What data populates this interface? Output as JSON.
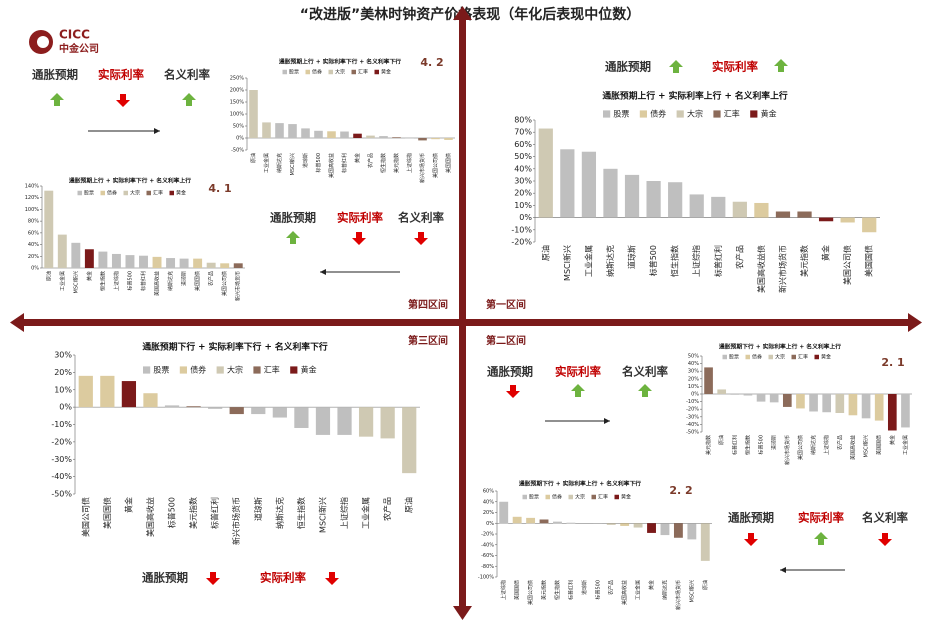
{
  "title": "“改进版”美林时钟资产价格表现（年化后表现中位数）",
  "logo": {
    "name": "CICC",
    "sub": "中金公司"
  },
  "quadrant_labels": [
    "第四区间",
    "第一区间",
    "第三区间",
    "第二区间"
  ],
  "indicators": [
    {
      "items": [
        {
          "text": "通胀预期",
          "dir": "up",
          "color": "#333333"
        },
        {
          "text": "实际利率",
          "dir": "down",
          "color": "#c00000"
        },
        {
          "text": "名义利率",
          "dir": "up",
          "color": "#333333"
        }
      ],
      "flow": "right"
    },
    {
      "items": [
        {
          "text": "通胀预期",
          "dir": "up",
          "color": "#333333"
        },
        {
          "text": "实际利率",
          "dir": "down",
          "color": "#c00000"
        },
        {
          "text": "名义利率",
          "dir": "down",
          "color": "#333333"
        }
      ],
      "flow": "left"
    },
    {
      "items": [
        {
          "text": "通胀预期",
          "dir": "up",
          "color": "#333333"
        },
        {
          "text": "实际利率",
          "dir": "up",
          "color": "#c00000"
        }
      ]
    },
    {
      "items": [
        {
          "text": "通胀预期",
          "dir": "down",
          "color": "#333333"
        },
        {
          "text": "实际利率",
          "dir": "up",
          "color": "#c00000"
        },
        {
          "text": "名义利率",
          "dir": "up",
          "color": "#333333"
        }
      ],
      "flow": "right"
    },
    {
      "items": [
        {
          "text": "通胀预期",
          "dir": "down",
          "color": "#333333"
        },
        {
          "text": "实际利率",
          "dir": "up",
          "color": "#c00000"
        },
        {
          "text": "名义利率",
          "dir": "down",
          "color": "#333333"
        }
      ],
      "flow": "left"
    },
    {
      "items": [
        {
          "text": "通胀预期",
          "dir": "down",
          "color": "#333333"
        },
        {
          "text": "实际利率",
          "dir": "down",
          "color": "#c00000"
        }
      ]
    }
  ],
  "chart_data": [
    {
      "type": "bar",
      "label": "4. 2",
      "title": "通胀预期上行 + 实际利率下行 + 名义利率下行",
      "legend": [
        {
          "name": "股票",
          "color": "#bfbfbf"
        },
        {
          "name": "债券",
          "color": "#dccb9f"
        },
        {
          "name": "大宗",
          "color": "#cfc9b3"
        },
        {
          "name": "汇率",
          "color": "#8c6b5a"
        },
        {
          "name": "黄金",
          "color": "#7b1a1a"
        }
      ],
      "categories": [
        "原油",
        "工业金属",
        "纳斯达克",
        "MSCI新兴",
        "道琼斯",
        "标普500",
        "美国高收益",
        "标普红利",
        "黄金",
        "农产品",
        "恒生指数",
        "美元指数",
        "上证综指",
        "新兴市场货币",
        "美国公司债",
        "美国国债"
      ],
      "values": [
        200,
        65,
        62,
        58,
        40,
        30,
        28,
        27,
        18,
        10,
        8,
        3,
        -2,
        -10,
        -5,
        -8
      ],
      "colors": [
        "#cfc9b3",
        "#cfc9b3",
        "#bfbfbf",
        "#bfbfbf",
        "#bfbfbf",
        "#bfbfbf",
        "#dccb9f",
        "#bfbfbf",
        "#7b1a1a",
        "#cfc9b3",
        "#bfbfbf",
        "#8c6b5a",
        "#bfbfbf",
        "#8c6b5a",
        "#dccb9f",
        "#dccb9f"
      ],
      "ylim": [
        -50,
        250
      ],
      "yticks": [
        {
          "value": 250,
          "label": "250%"
        },
        {
          "value": 200,
          "label": "200%"
        },
        {
          "value": 150,
          "label": "150%"
        },
        {
          "value": 100,
          "label": "100%"
        },
        {
          "value": 50,
          "label": "50%"
        },
        {
          "value": 0,
          "label": "0%"
        },
        {
          "value": -50,
          "label": "-50%"
        }
      ]
    },
    {
      "type": "bar",
      "label": "4. 1",
      "title": "通胀预期上行 + 实际利率下行 + 名义利率上行",
      "legend": [
        {
          "name": "股票",
          "color": "#bfbfbf"
        },
        {
          "name": "债券",
          "color": "#dccb9f"
        },
        {
          "name": "大宗",
          "color": "#cfc9b3"
        },
        {
          "name": "汇率",
          "color": "#8c6b5a"
        },
        {
          "name": "黄金",
          "color": "#7b1a1a"
        }
      ],
      "categories": [
        "原油",
        "工业金属",
        "MSCI新兴",
        "黄金",
        "恒生指数",
        "上证综指",
        "标普500",
        "标普红利",
        "美国高收益",
        "纳斯达克",
        "道琼斯",
        "美国国债",
        "农产品",
        "美国公司债",
        "新兴市场货币"
      ],
      "values": [
        132,
        57,
        43,
        32,
        28,
        24,
        22,
        21,
        19,
        17,
        16,
        16,
        9,
        8,
        8
      ],
      "colors": [
        "#cfc9b3",
        "#cfc9b3",
        "#bfbfbf",
        "#7b1a1a",
        "#bfbfbf",
        "#bfbfbf",
        "#bfbfbf",
        "#bfbfbf",
        "#dccb9f",
        "#bfbfbf",
        "#bfbfbf",
        "#dccb9f",
        "#cfc9b3",
        "#dccb9f",
        "#8c6b5a"
      ],
      "ylim": [
        0,
        140
      ],
      "yticks": [
        {
          "value": 140,
          "label": "140%"
        },
        {
          "value": 120,
          "label": "120%"
        },
        {
          "value": 100,
          "label": "100%"
        },
        {
          "value": 80,
          "label": "80%"
        },
        {
          "value": 60,
          "label": "60%"
        },
        {
          "value": 40,
          "label": "40%"
        },
        {
          "value": 20,
          "label": "20%"
        },
        {
          "value": 0,
          "label": "0%"
        }
      ]
    },
    {
      "type": "bar",
      "title": "通胀预期上行 + 实际利率上行 + 名义利率上行",
      "legend": [
        {
          "name": "股票",
          "color": "#bfbfbf"
        },
        {
          "name": "债券",
          "color": "#dccb9f"
        },
        {
          "name": "大宗",
          "color": "#cfc9b3"
        },
        {
          "name": "汇率",
          "color": "#8c6b5a"
        },
        {
          "name": "黄金",
          "color": "#7b1a1a"
        }
      ],
      "categories": [
        "原油",
        "MSCI新兴",
        "工业金属",
        "纳斯达克",
        "道琼斯",
        "标普500",
        "恒生指数",
        "上证综指",
        "标普红利",
        "农产品",
        "美国高收益债",
        "新兴市场货币",
        "美元指数",
        "黄金",
        "美国公司债",
        "美国国债"
      ],
      "values": [
        73,
        56,
        54,
        40,
        35,
        30,
        29,
        19,
        17,
        13,
        12,
        5,
        5,
        -3,
        -4,
        -12
      ],
      "colors": [
        "#cfc9b3",
        "#bfbfbf",
        "#bfbfbf",
        "#bfbfbf",
        "#bfbfbf",
        "#bfbfbf",
        "#bfbfbf",
        "#bfbfbf",
        "#bfbfbf",
        "#cfc9b3",
        "#dccb9f",
        "#8c6b5a",
        "#8c6b5a",
        "#7b1a1a",
        "#dccb9f",
        "#dccb9f"
      ],
      "ylim": [
        -20,
        80
      ],
      "yticks": [
        {
          "value": 80,
          "label": "80%"
        },
        {
          "value": 70,
          "label": "70%"
        },
        {
          "value": 60,
          "label": "60%"
        },
        {
          "value": 50,
          "label": "50%"
        },
        {
          "value": 40,
          "label": "40%"
        },
        {
          "value": 30,
          "label": "30%"
        },
        {
          "value": 20,
          "label": "20%"
        },
        {
          "value": 10,
          "label": "10%"
        },
        {
          "value": 0,
          "label": "0%"
        },
        {
          "value": -10,
          "label": "-10%"
        },
        {
          "value": -20,
          "label": "-20%"
        }
      ]
    },
    {
      "type": "bar",
      "title": "通胀预期下行 + 实际利率下行 + 名义利率下行",
      "legend": [
        {
          "name": "股票",
          "color": "#bfbfbf"
        },
        {
          "name": "债券",
          "color": "#dccb9f"
        },
        {
          "name": "大宗",
          "color": "#cfc9b3"
        },
        {
          "name": "汇率",
          "color": "#8c6b5a"
        },
        {
          "name": "黄金",
          "color": "#7b1a1a"
        }
      ],
      "categories": [
        "美国公司债",
        "美国国债",
        "黄金",
        "美国高收益",
        "标普500",
        "美元指数",
        "标普红利",
        "新兴市场货币",
        "道琼斯",
        "纳斯达克",
        "恒生指数",
        "MSCI新兴",
        "上证综指",
        "工业金属",
        "农产品",
        "原油"
      ],
      "values": [
        18,
        18,
        15,
        8,
        1,
        0.5,
        -1,
        -4,
        -4,
        -6,
        -12,
        -16,
        -16,
        -17,
        -18,
        -38
      ],
      "colors": [
        "#dccb9f",
        "#dccb9f",
        "#7b1a1a",
        "#dccb9f",
        "#bfbfbf",
        "#8c6b5a",
        "#bfbfbf",
        "#8c6b5a",
        "#bfbfbf",
        "#bfbfbf",
        "#bfbfbf",
        "#bfbfbf",
        "#bfbfbf",
        "#cfc9b3",
        "#cfc9b3",
        "#cfc9b3"
      ],
      "ylim": [
        -50,
        30
      ],
      "yticks": [
        {
          "value": 30,
          "label": "30%"
        },
        {
          "value": 20,
          "label": "20%"
        },
        {
          "value": 10,
          "label": "10%"
        },
        {
          "value": 0,
          "label": "0%"
        },
        {
          "value": -10,
          "label": "-10%"
        },
        {
          "value": -20,
          "label": "-20%"
        },
        {
          "value": -30,
          "label": "-30%"
        },
        {
          "value": -40,
          "label": "-40%"
        },
        {
          "value": -50,
          "label": "-50%"
        }
      ]
    },
    {
      "type": "bar",
      "label": "2. 1",
      "title": "通胀预期下行 + 实际利率上行 + 名义利率上行",
      "legend": [
        {
          "name": "股票",
          "color": "#bfbfbf"
        },
        {
          "name": "债券",
          "color": "#dccb9f"
        },
        {
          "name": "大宗",
          "color": "#cfc9b3"
        },
        {
          "name": "汇率",
          "color": "#8c6b5a"
        },
        {
          "name": "黄金",
          "color": "#7b1a1a"
        }
      ],
      "categories": [
        "美元指数",
        "原油",
        "标普红利",
        "恒生指数",
        "标普500",
        "道琼斯",
        "新兴市场货币",
        "美国公司债",
        "纳斯达克",
        "上证综指",
        "农产品",
        "美国高收益",
        "MSCI新兴",
        "美国国债",
        "黄金",
        "工业金属"
      ],
      "values": [
        35,
        6,
        -1,
        -2,
        -10,
        -11,
        -17,
        -19,
        -23,
        -24,
        -25,
        -28,
        -32,
        -35,
        -48,
        -44
      ],
      "colors": [
        "#8c6b5a",
        "#cfc9b3",
        "#bfbfbf",
        "#bfbfbf",
        "#bfbfbf",
        "#bfbfbf",
        "#8c6b5a",
        "#dccb9f",
        "#bfbfbf",
        "#bfbfbf",
        "#cfc9b3",
        "#dccb9f",
        "#bfbfbf",
        "#dccb9f",
        "#7b1a1a",
        "#bfbfbf"
      ],
      "ylim": [
        -50,
        50
      ],
      "yticks": [
        {
          "value": 50,
          "label": "50%"
        },
        {
          "value": 40,
          "label": "40%"
        },
        {
          "value": 30,
          "label": "30%"
        },
        {
          "value": 20,
          "label": "20%"
        },
        {
          "value": 10,
          "label": "10%"
        },
        {
          "value": 0,
          "label": "0%"
        },
        {
          "value": -10,
          "label": "-10%"
        },
        {
          "value": -20,
          "label": "-20%"
        },
        {
          "value": -30,
          "label": "-30%"
        },
        {
          "value": -40,
          "label": "-40%"
        },
        {
          "value": -50,
          "label": "-50%"
        }
      ]
    },
    {
      "type": "bar",
      "label": "2. 2",
      "title": "通胀预期下行 + 实际利率上行 + 名义利率下行",
      "legend": [
        {
          "name": "股票",
          "color": "#bfbfbf"
        },
        {
          "name": "债券",
          "color": "#dccb9f"
        },
        {
          "name": "大宗",
          "color": "#cfc9b3"
        },
        {
          "name": "汇率",
          "color": "#8c6b5a"
        },
        {
          "name": "黄金",
          "color": "#7b1a1a"
        }
      ],
      "categories": [
        "上证综指",
        "美国国债",
        "美国公司债",
        "美元指数",
        "恒生指数",
        "标普红利",
        "道琼斯",
        "标普500",
        "农产品",
        "美国高收益",
        "工业金属",
        "黄金",
        "纳斯达克",
        "新兴市场货币",
        "MSCI新兴",
        "原油"
      ],
      "values": [
        40,
        12,
        10,
        7,
        3,
        1,
        0,
        -1,
        -3,
        -5,
        -8,
        -18,
        -22,
        -27,
        -30,
        -70
      ],
      "colors": [
        "#bfbfbf",
        "#dccb9f",
        "#dccb9f",
        "#8c6b5a",
        "#bfbfbf",
        "#bfbfbf",
        "#bfbfbf",
        "#bfbfbf",
        "#cfc9b3",
        "#dccb9f",
        "#cfc9b3",
        "#7b1a1a",
        "#bfbfbf",
        "#8c6b5a",
        "#bfbfbf",
        "#cfc9b3"
      ],
      "ylim": [
        -100,
        60
      ],
      "yticks": [
        {
          "value": 60,
          "label": "60%"
        },
        {
          "value": 40,
          "label": "40%"
        },
        {
          "value": 20,
          "label": "20%"
        },
        {
          "value": 0,
          "label": "0%"
        },
        {
          "value": -20,
          "label": "-20%"
        },
        {
          "value": -40,
          "label": "-40%"
        },
        {
          "value": -60,
          "label": "-60%"
        },
        {
          "value": -80,
          "label": "-80%"
        },
        {
          "value": -100,
          "label": "-100%"
        }
      ]
    }
  ]
}
